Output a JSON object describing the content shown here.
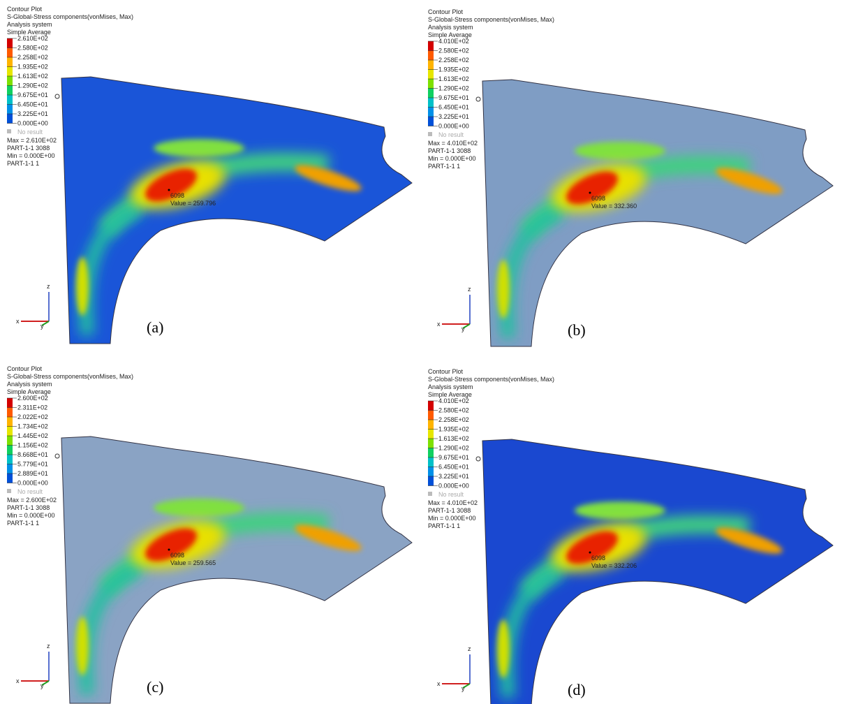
{
  "panels": [
    {
      "header": [
        "Contour Plot",
        "S-Global-Stress components(vonMises, Max)",
        "Analysis system",
        "Simple Average"
      ],
      "legend": [
        "2.610E+02",
        "2.580E+02",
        "2.258E+02",
        "1.935E+02",
        "1.613E+02",
        "1.290E+02",
        "9.675E+01",
        "6.450E+01",
        "3.225E+01",
        "0.000E+00"
      ],
      "no_result": "No result",
      "stats": [
        "Max = 2.610E+02",
        "PART-1-1 3088",
        "Min = 0.000E+00",
        "PART-1-1 1"
      ],
      "probe": {
        "node": "6098",
        "value": "Value = 259.796"
      },
      "axes": {
        "z": "z",
        "x": "x",
        "y": "y"
      },
      "label": "(a)"
    },
    {
      "header": [
        "Contour Plot",
        "S-Global-Stress components(vonMises, Max)",
        "Analysis system",
        "Simple Average"
      ],
      "legend": [
        "4.010E+02",
        "2.580E+02",
        "2.258E+02",
        "1.935E+02",
        "1.613E+02",
        "1.290E+02",
        "9.675E+01",
        "6.450E+01",
        "3.225E+01",
        "0.000E+00"
      ],
      "no_result": "No result",
      "stats": [
        "Max = 4.010E+02",
        "PART-1-1 3088",
        "Min = 0.000E+00",
        "PART-1-1 1"
      ],
      "probe": {
        "node": "6098",
        "value": "Value = 332.360"
      },
      "axes": {
        "z": "z",
        "x": "x",
        "y": "y"
      },
      "label": "(b)"
    },
    {
      "header": [
        "Contour Plot",
        "S-Global-Stress components(vonMises, Max)",
        "Analysis system",
        "Simple Average"
      ],
      "legend": [
        "2.600E+02",
        "2.311E+02",
        "2.022E+02",
        "1.734E+02",
        "1.445E+02",
        "1.156E+02",
        "8.668E+01",
        "5.779E+01",
        "2.889E+01",
        "0.000E+00"
      ],
      "no_result": "No result",
      "stats": [
        "Max = 2.600E+02",
        "PART-1-1 3088",
        "Min = 0.000E+00",
        "PART-1-1 1"
      ],
      "probe": {
        "node": "6098",
        "value": "Value = 259.565"
      },
      "axes": {
        "z": "z",
        "x": "x",
        "y": "y"
      },
      "label": "(c)"
    },
    {
      "header": [
        "Contour Plot",
        "S-Global-Stress components(vonMises, Max)",
        "Analysis system",
        "Simple Average"
      ],
      "legend": [
        "4.010E+02",
        "2.580E+02",
        "2.258E+02",
        "1.935E+02",
        "1.613E+02",
        "1.290E+02",
        "9.675E+01",
        "6.450E+01",
        "3.225E+01",
        "0.000E+00"
      ],
      "no_result": "No result",
      "stats": [
        "Max = 4.010E+02",
        "PART-1-1 3088",
        "Min = 0.000E+00",
        "PART-1-1 1"
      ],
      "probe": {
        "node": "6098",
        "value": "Value = 332.206"
      },
      "axes": {
        "z": "z",
        "x": "x",
        "y": "y"
      },
      "label": "(d)"
    }
  ]
}
